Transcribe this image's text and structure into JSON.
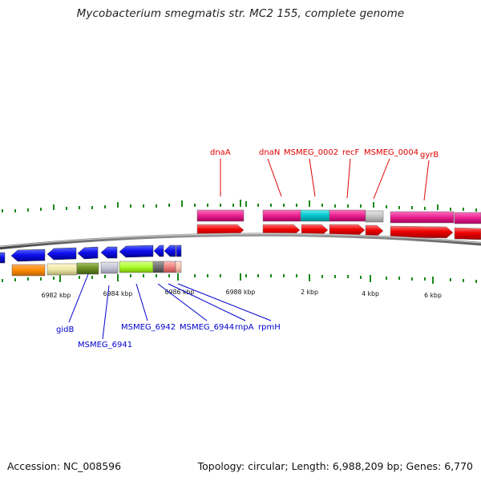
{
  "title": "Mycobacterium smegmatis str. MC2 155, complete genome",
  "footer": {
    "accession": "Accession: NC_008596",
    "summary": "Topology: circular; Length: 6,988,209 bp; Genes: 6,770"
  },
  "scale": {
    "tick_labels": [
      "6982 kbp",
      "6984 kbp",
      "6986 kbp",
      "6988 kbp",
      "2 kbp",
      "4 kbp",
      "6 kbp"
    ]
  },
  "forward_genes": {
    "labels": [
      "dnaA",
      "dnaN",
      "MSMEG_0002",
      "recF",
      "MSMEG_0004",
      "gyrB"
    ],
    "color": "#e00000"
  },
  "reverse_genes": {
    "labels": [
      "gidB",
      "MSMEG_6941",
      "MSMEG_6942",
      "MSMEG_6944",
      "rnpA",
      "rpmH"
    ],
    "color": "#0000cc"
  },
  "colors": {
    "forward_cds": "#ee0000",
    "reverse_cds": "#0000ee",
    "tick": "#1a8a1a",
    "backbone": "#6e6e6e"
  }
}
